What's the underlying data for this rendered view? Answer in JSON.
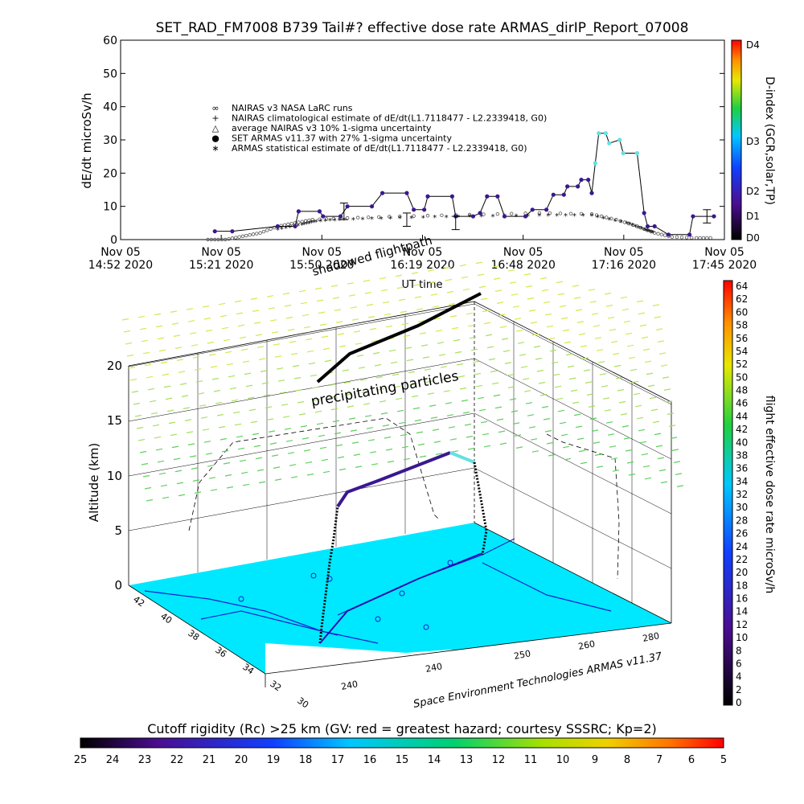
{
  "figure": {
    "title": "SET_RAD_FM7008  B739 Tail#? effective dose rate ARMAS_dirIP_Report_07008",
    "footer_caption": "Cutoff rigidity (Rc) >25 km (GV: red = greatest hazard; courtesy SSSRC; Kp=2)",
    "credit": "Space Environment Technologies ARMAS v11.37",
    "colors": {
      "measured": "#3a1890",
      "high_dose": "#66e0e0",
      "ground": "#00e8ff",
      "precip": "#b8e640"
    }
  },
  "chart_data": [
    {
      "type": "line",
      "title": "SET_RAD_FM7008  B739 Tail#? effective dose rate ARMAS_dirIP_Report_07008",
      "xlabel": "UT time",
      "ylabel": "dE/dt microSv/h",
      "ylim": [
        0,
        60
      ],
      "y_ticks": [
        "0",
        "10",
        "20",
        "30",
        "40",
        "50",
        "60"
      ],
      "x_ticks": [
        {
          "l1": "Nov 05",
          "l2": "14:52 2020"
        },
        {
          "l1": "Nov 05",
          "l2": "15:21 2020"
        },
        {
          "l1": "Nov 05",
          "l2": "15:50 2020"
        },
        {
          "l1": "Nov 05",
          "l2": "16:19 2020"
        },
        {
          "l1": "Nov 05",
          "l2": "16:48 2020"
        },
        {
          "l1": "Nov 05",
          "l2": "17:16 2020"
        },
        {
          "l1": "Nov 05",
          "l2": "17:45 2020"
        }
      ],
      "x_range_min": [
        0,
        173
      ],
      "annotation_text": "shadowed flightpath",
      "legend": [
        {
          "symbol": "∞",
          "label": "NAIRAS v3 NASA LaRC runs"
        },
        {
          "symbol": "+",
          "label": "NAIRAS climatological estimate of dE/dt(L1.7118477 - L2.2339418, G0)"
        },
        {
          "symbol": "△",
          "label": "average NAIRAS v3 10% 1-sigma uncertainty"
        },
        {
          "symbol": "●",
          "label": "SET ARMAS v11.37 with 27% 1-sigma uncertainty"
        },
        {
          "symbol": "∗",
          "label": "ARMAS statistical estimate of dE/dt(L1.7118477 - L2.2339418, G0)"
        }
      ],
      "series": [
        {
          "name": "SET ARMAS v11.37 with 27% 1-sigma uncertainty",
          "points": [
            [
              27,
              2.5
            ],
            [
              32,
              2.5
            ],
            [
              45,
              4
            ],
            [
              50,
              4
            ],
            [
              51,
              8.5
            ],
            [
              57,
              8.5
            ],
            [
              58,
              7
            ],
            [
              63,
              7
            ],
            [
              65,
              10
            ],
            [
              72,
              10
            ],
            [
              75,
              14
            ],
            [
              82,
              14
            ],
            [
              84,
              9
            ],
            [
              87,
              9
            ],
            [
              88,
              13
            ],
            [
              95,
              13
            ],
            [
              96,
              7
            ],
            [
              101,
              7
            ],
            [
              103,
              8
            ],
            [
              105,
              13
            ],
            [
              108,
              13
            ],
            [
              110,
              7
            ],
            [
              116,
              7
            ],
            [
              118,
              9
            ],
            [
              122,
              9
            ],
            [
              124,
              13.5
            ],
            [
              127,
              13.5
            ],
            [
              128,
              16
            ],
            [
              131,
              16
            ],
            [
              132,
              18
            ],
            [
              134,
              18
            ],
            [
              135,
              14
            ],
            [
              136,
              23
            ],
            [
              137,
              32
            ],
            [
              139,
              32
            ],
            [
              140,
              29
            ],
            [
              143,
              30
            ],
            [
              144,
              26
            ],
            [
              148,
              26
            ],
            [
              150,
              8
            ],
            [
              151,
              4
            ],
            [
              153,
              4
            ],
            [
              157,
              1.5
            ],
            [
              163,
              1.5
            ],
            [
              164,
              7
            ],
            [
              170,
              7
            ]
          ]
        },
        {
          "name": "ARMAS statistical estimate of dE/dt(L1.7118477 - L2.2339418, G0)",
          "points": [
            [
              45,
              3
            ],
            [
              52,
              4.5
            ],
            [
              56,
              5.5
            ],
            [
              64,
              6
            ],
            [
              80,
              6.5
            ],
            [
              100,
              7
            ],
            [
              120,
              7.2
            ],
            [
              135,
              7.2
            ],
            [
              145,
              5
            ],
            [
              150,
              3
            ],
            [
              153,
              2
            ]
          ]
        },
        {
          "name": "NAIRAS v3 NASA LaRC runs",
          "points": [
            [
              25,
              0
            ],
            [
              30,
              0
            ],
            [
              35,
              1
            ],
            [
              40,
              2
            ],
            [
              45,
              4
            ],
            [
              50,
              5
            ],
            [
              55,
              6
            ],
            [
              65,
              6.5
            ],
            [
              80,
              7
            ],
            [
              100,
              7.5
            ],
            [
              120,
              8
            ],
            [
              135,
              7.7
            ],
            [
              142,
              6
            ],
            [
              148,
              4
            ],
            [
              153,
              2
            ],
            [
              158,
              0.8
            ],
            [
              165,
              0.5
            ],
            [
              170,
              0.5
            ]
          ]
        }
      ],
      "error_bars": [
        {
          "x": 64,
          "y": 8.5,
          "lo": 6,
          "hi": 11
        },
        {
          "x": 82,
          "y": 6,
          "lo": 4,
          "hi": 8
        },
        {
          "x": 96,
          "y": 5,
          "lo": 3,
          "hi": 7
        },
        {
          "x": 168,
          "y": 7,
          "lo": 5,
          "hi": 9
        }
      ],
      "colorbar": {
        "label": "D-index (GCR,solar,TP)",
        "ticks": [
          "D4",
          "D3",
          "D2",
          "D1",
          "D0"
        ]
      }
    },
    {
      "type": "3d-flightpath",
      "zlabel": "Altitude (km)",
      "z_ticks": [
        "0",
        "5",
        "10",
        "15",
        "20"
      ],
      "lat_ticks": [
        "42",
        "40",
        "38",
        "36",
        "34",
        "32",
        "30"
      ],
      "lon_ticks": [
        "240",
        "240",
        "250",
        "260",
        "280"
      ],
      "annotation_text": "precipitating particles",
      "colorbar": {
        "label": "flight effective dose rate microSv/h",
        "ticks": [
          "64",
          "62",
          "60",
          "58",
          "56",
          "54",
          "52",
          "50",
          "48",
          "46",
          "44",
          "42",
          "40",
          "38",
          "36",
          "34",
          "32",
          "30",
          "28",
          "26",
          "24",
          "22",
          "20",
          "18",
          "16",
          "14",
          "12",
          "10",
          "8",
          "6",
          "4",
          "2",
          "0"
        ]
      }
    },
    {
      "type": "colorbar",
      "title": "Cutoff rigidity (Rc) >25 km (GV: red = greatest hazard; courtesy SSSRC; Kp=2)",
      "ticks": [
        "25",
        "24",
        "23",
        "22",
        "21",
        "20",
        "19",
        "18",
        "17",
        "16",
        "15",
        "14",
        "13",
        "12",
        "11",
        "10",
        "9",
        "8",
        "7",
        "6",
        "5"
      ]
    }
  ]
}
